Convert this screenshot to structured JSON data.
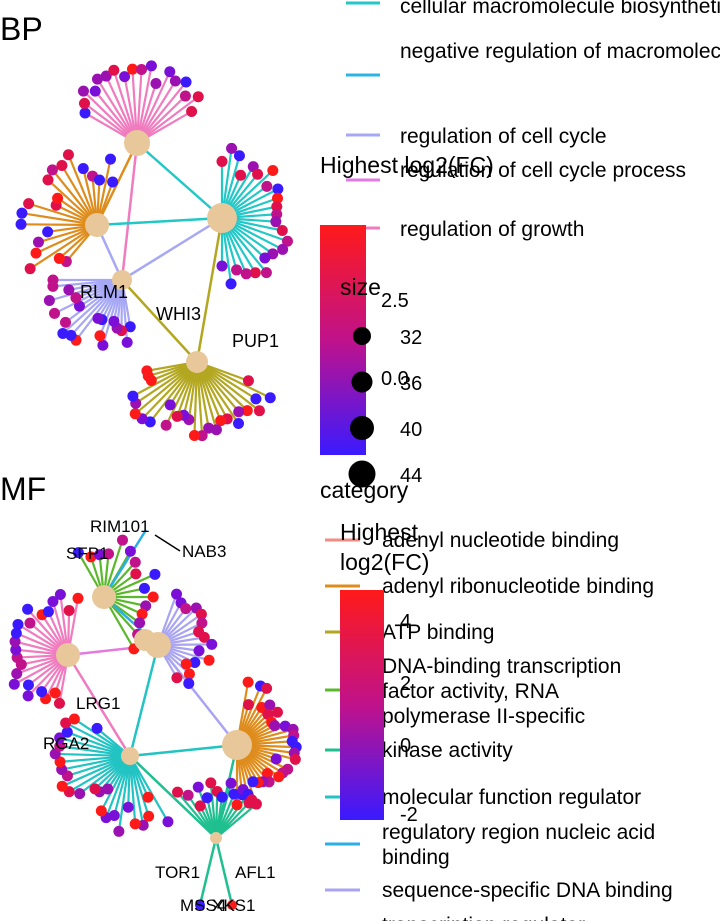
{
  "chart_data": [
    {
      "type": "network",
      "title": "BP",
      "gene_labels": [
        "RLM1",
        "WHI3",
        "PUP1"
      ],
      "legend_category": {
        "title": "",
        "entries": [
          {
            "label": "cellular macromolecule biosynthetic process",
            "color": "#22c7c7"
          },
          {
            "label": "negative regulation of macromolecule biosynthetic process",
            "color": "#2bb5e6"
          },
          {
            "label": "regulation of cell cycle",
            "color": "#a7a8f5"
          },
          {
            "label": "regulation of cell cycle process",
            "color": "#e07ae6"
          },
          {
            "label": "regulation of growth",
            "color": "#f07bbf"
          }
        ]
      },
      "legend_fc": {
        "title": "Highest log2(FC)",
        "ticks": [
          "2.5",
          "0.0"
        ]
      },
      "legend_size": {
        "title": "size",
        "values": [
          "32",
          "36",
          "40",
          "44"
        ]
      }
    },
    {
      "type": "network",
      "title": "MF",
      "gene_labels": [
        "RIM101",
        "SFP1",
        "NAB3",
        "LRG1",
        "RGA2",
        "TOR1",
        "AFL1",
        "MSS4",
        "XKS1"
      ],
      "legend_category": {
        "title": "category",
        "entries": [
          {
            "label": "adenyl nucleotide binding",
            "color": "#f28b82"
          },
          {
            "label": "adenyl ribonucleotide binding",
            "color": "#de8c1c"
          },
          {
            "label": "ATP binding",
            "color": "#b3a721"
          },
          {
            "label": "DNA-binding transcription factor activity, RNA polymerase II-specific",
            "color": "#5bb82a"
          },
          {
            "label": "kinase activity",
            "color": "#1fbf8f"
          },
          {
            "label": "molecular function regulator",
            "color": "#22c3c3"
          },
          {
            "label": "regulatory region nucleic acid binding",
            "color": "#2aaee8"
          },
          {
            "label": "sequence-specific DNA binding",
            "color": "#a9a4f2"
          },
          {
            "label": "transcription regulator",
            "color": "#e37ae0"
          }
        ]
      },
      "legend_fc": {
        "title": "Highest log2(FC)",
        "ticks": [
          "4",
          "2",
          "0",
          "-2"
        ]
      }
    }
  ],
  "colors": {
    "hub": "#e8c89a",
    "fc_high": "#ff1a1a",
    "fc_mid": "#c0128a",
    "fc_low": "#3a1aff"
  }
}
